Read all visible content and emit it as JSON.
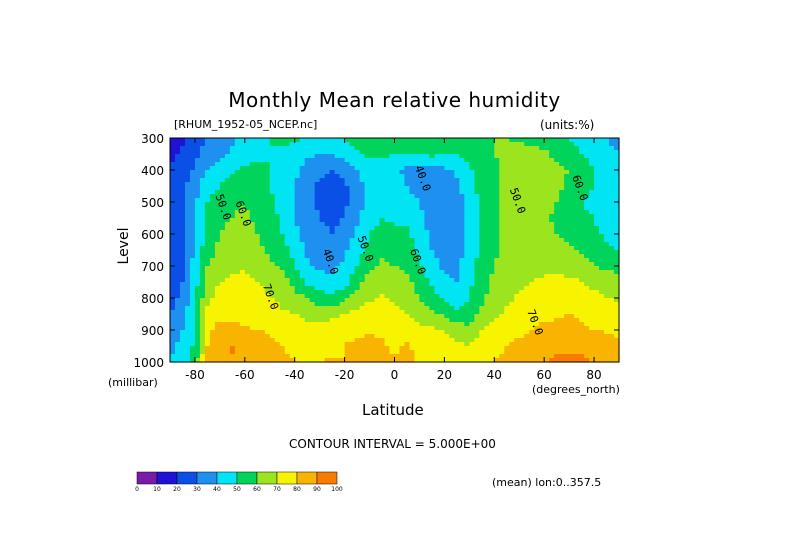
{
  "chart_data": {
    "type": "heatmap",
    "title": "Monthly Mean relative humidity",
    "dataset": "[RHUM_1952-05_NCEP.nc]",
    "units": "(units:%)",
    "xlabel": "Latitude",
    "x_units": "(degrees_north)",
    "ylabel": "Level",
    "y_units": "(millibar)",
    "xlim": [
      -90,
      90
    ],
    "ylim": [
      1000,
      300
    ],
    "x_ticks": [
      "-80",
      "-60",
      "-40",
      "-20",
      "0",
      "20",
      "40",
      "60",
      "80"
    ],
    "x_tick_values": [
      -80,
      -60,
      -40,
      -20,
      0,
      20,
      40,
      60,
      80
    ],
    "y_ticks": [
      "300",
      "400",
      "500",
      "600",
      "700",
      "800",
      "900",
      "1000"
    ],
    "y_tick_values": [
      300,
      400,
      500,
      600,
      700,
      800,
      900,
      1000
    ],
    "contour_interval_text": "CONTOUR INTERVAL = 5.000E+00",
    "mean_text": "(mean) lon:0..357.5",
    "contour_labels": [
      {
        "text": "50.0",
        "lat": -70,
        "lev": 520
      },
      {
        "text": "60.0",
        "lat": -62,
        "lev": 540
      },
      {
        "text": "70.0",
        "lat": -51,
        "lev": 800
      },
      {
        "text": "40.0",
        "lat": -27,
        "lev": 690
      },
      {
        "text": "50.0",
        "lat": -13,
        "lev": 650
      },
      {
        "text": "60.0",
        "lat": 8,
        "lev": 690
      },
      {
        "text": "40.0",
        "lat": 10,
        "lev": 430
      },
      {
        "text": "50.0",
        "lat": 48,
        "lev": 500
      },
      {
        "text": "60.0",
        "lat": 73,
        "lev": 460
      },
      {
        "text": "70.0",
        "lat": 55,
        "lev": 880
      }
    ],
    "colorbar": {
      "levels": [
        "0",
        "10",
        "20",
        "30",
        "40",
        "50",
        "60",
        "70",
        "80",
        "90",
        "100"
      ],
      "colors": [
        "#7a1aa8",
        "#1e12d6",
        "#0a50e6",
        "#1e90f0",
        "#00e4f4",
        "#00d45a",
        "#9be41e",
        "#f8f400",
        "#f8b400",
        "#f87a00",
        "#f82a00",
        "#f80000"
      ]
    },
    "profile": {
      "lat": [
        -90,
        -85,
        -80,
        -75,
        -70,
        -65,
        -60,
        -55,
        -50,
        -45,
        -40,
        -35,
        -30,
        -25,
        -20,
        -15,
        -10,
        -5,
        0,
        5,
        10,
        15,
        20,
        25,
        30,
        35,
        40,
        45,
        50,
        55,
        60,
        65,
        70,
        75,
        80,
        85,
        90
      ],
      "lev": [
        1000,
        950,
        900,
        850,
        800,
        750,
        700,
        650,
        600,
        550,
        500,
        450,
        400,
        350,
        300
      ],
      "rh": [
        [
          40,
          45,
          55,
          82,
          88,
          89,
          90,
          87,
          84,
          82,
          80,
          79,
          80,
          81,
          80,
          85,
          88,
          86,
          80,
          84,
          78,
          79,
          77,
          76,
          74,
          78,
          80,
          82,
          84,
          86,
          90,
          92,
          93,
          92,
          90,
          88,
          86
        ],
        [
          38,
          42,
          52,
          80,
          87,
          91,
          86,
          84,
          82,
          80,
          78,
          76,
          77,
          78,
          80,
          82,
          83,
          82,
          78,
          82,
          76,
          76,
          74,
          72,
          70,
          76,
          78,
          80,
          82,
          84,
          86,
          88,
          88,
          87,
          86,
          84,
          82
        ],
        [
          36,
          40,
          52,
          78,
          83,
          82,
          81,
          80,
          79,
          76,
          75,
          73,
          74,
          76,
          77,
          78,
          79,
          78,
          75,
          76,
          72,
          72,
          70,
          66,
          62,
          70,
          74,
          76,
          78,
          80,
          82,
          82,
          83,
          82,
          80,
          79,
          78
        ],
        [
          30,
          36,
          50,
          72,
          78,
          78,
          77,
          76,
          74,
          71,
          70,
          68,
          66,
          67,
          71,
          73,
          74,
          74,
          72,
          70,
          67,
          63,
          58,
          52,
          55,
          62,
          68,
          72,
          74,
          76,
          78,
          79,
          80,
          78,
          76,
          75,
          74
        ],
        [
          26,
          32,
          48,
          68,
          73,
          74,
          74,
          73,
          71,
          68,
          64,
          60,
          55,
          52,
          57,
          64,
          69,
          71,
          69,
          66,
          60,
          54,
          48,
          44,
          50,
          58,
          64,
          68,
          71,
          73,
          74,
          75,
          76,
          75,
          72,
          70,
          69
        ],
        [
          24,
          30,
          46,
          64,
          70,
          72,
          71,
          70,
          67,
          64,
          56,
          48,
          44,
          42,
          46,
          56,
          64,
          68,
          66,
          62,
          56,
          48,
          42,
          40,
          48,
          56,
          62,
          66,
          68,
          70,
          71,
          72,
          72,
          70,
          68,
          66,
          64
        ],
        [
          22,
          28,
          44,
          60,
          66,
          68,
          70,
          66,
          62,
          58,
          50,
          42,
          38,
          38,
          42,
          50,
          58,
          62,
          60,
          58,
          52,
          44,
          38,
          38,
          46,
          55,
          60,
          64,
          66,
          68,
          68,
          68,
          66,
          64,
          60,
          58,
          56
        ],
        [
          20,
          26,
          42,
          56,
          62,
          64,
          67,
          62,
          58,
          54,
          46,
          38,
          35,
          34,
          38,
          46,
          54,
          58,
          56,
          55,
          48,
          40,
          35,
          36,
          44,
          52,
          58,
          62,
          64,
          66,
          66,
          64,
          62,
          58,
          56,
          52,
          50
        ],
        [
          20,
          26,
          42,
          54,
          60,
          63,
          64,
          60,
          56,
          50,
          42,
          36,
          32,
          30,
          34,
          42,
          50,
          54,
          53,
          52,
          44,
          38,
          34,
          36,
          44,
          52,
          58,
          62,
          64,
          64,
          62,
          60,
          58,
          54,
          52,
          48,
          46
        ],
        [
          20,
          26,
          40,
          52,
          58,
          60,
          62,
          58,
          54,
          48,
          40,
          34,
          30,
          28,
          30,
          38,
          46,
          50,
          48,
          48,
          42,
          36,
          32,
          36,
          44,
          52,
          58,
          62,
          64,
          64,
          62,
          58,
          56,
          52,
          50,
          46,
          44
        ],
        [
          20,
          26,
          38,
          50,
          54,
          58,
          60,
          56,
          52,
          46,
          40,
          32,
          28,
          26,
          28,
          36,
          44,
          46,
          44,
          44,
          40,
          34,
          30,
          36,
          44,
          52,
          58,
          62,
          64,
          64,
          62,
          60,
          56,
          50,
          48,
          44,
          42
        ],
        [
          22,
          28,
          36,
          46,
          50,
          54,
          56,
          54,
          50,
          46,
          40,
          34,
          28,
          26,
          28,
          36,
          44,
          46,
          42,
          40,
          36,
          32,
          32,
          38,
          46,
          54,
          58,
          62,
          64,
          66,
          64,
          62,
          58,
          54,
          50,
          46,
          44
        ],
        [
          20,
          24,
          32,
          40,
          44,
          48,
          52,
          52,
          50,
          46,
          42,
          36,
          32,
          30,
          34,
          40,
          46,
          46,
          42,
          38,
          36,
          36,
          38,
          42,
          48,
          56,
          58,
          62,
          64,
          66,
          64,
          62,
          60,
          56,
          50,
          46,
          44
        ],
        [
          18,
          22,
          28,
          34,
          38,
          42,
          46,
          48,
          50,
          48,
          46,
          42,
          40,
          40,
          44,
          48,
          52,
          52,
          50,
          50,
          50,
          52,
          50,
          50,
          54,
          58,
          60,
          62,
          64,
          64,
          62,
          58,
          54,
          50,
          46,
          42,
          40
        ],
        [
          12,
          18,
          24,
          30,
          34,
          38,
          42,
          46,
          50,
          52,
          52,
          50,
          48,
          48,
          50,
          54,
          56,
          56,
          56,
          58,
          58,
          58,
          56,
          56,
          58,
          60,
          60,
          60,
          58,
          56,
          54,
          52,
          50,
          46,
          42,
          40,
          38
        ]
      ]
    }
  }
}
